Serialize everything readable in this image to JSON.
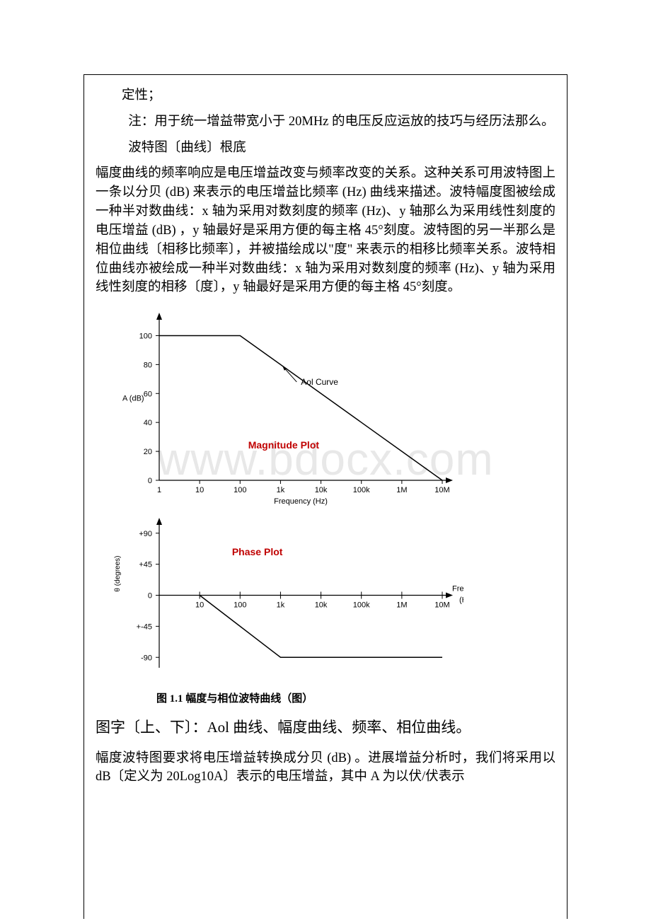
{
  "watermark": "www.bdocx.com",
  "text": {
    "line1": "定性；",
    "line2": "注：用于统一增益带宽小于 20MHz 的电压反应运放的技巧与经历法那么。",
    "line3": "波特图〔曲线〕根底",
    "para1": "幅度曲线的频率响应是电压增益改变与频率改变的关系。这种关系可用波特图上一条以分贝 (dB) 来表示的电压增益比频率 (Hz) 曲线来描述。波特幅度图被绘成一种半对数曲线：x 轴为采用对数刻度的频率 (Hz)、y 轴那么为采用线性刻度的电压增益 (dB) ，y 轴最好是采用方便的每主格 45°刻度。波特图的另一半那么是相位曲线〔相移比频率〕，并被描绘成以\"度\" 来表示的相移比频率关系。波特相位曲线亦被绘成一种半对数曲线：x 轴为采用对数刻度的频率 (Hz)、y 轴为采用线性刻度的相移〔度〕，y 轴最好是采用方便的每主格 45°刻度。",
    "legend_list": "图字〔上、下〕：Aol 曲线、幅度曲线、频率、相位曲线。",
    "para2": "幅度波特图要求将电压增益转换成分贝 (dB) 。进展增益分析时，我们将采用以 dB〔定义为 20Log10A〕表示的电压增益，其中 A 为以伏/伏表示"
  },
  "figure": {
    "caption": "图 1.1   幅度与相位波特曲线（图）",
    "magnitude": {
      "title": "Magnitude Plot",
      "title_color": "#c00000",
      "title_fontsize": 14,
      "title_bold": true,
      "aol_label": "Aol Curve",
      "aol_label_color": "#000000",
      "aol_label_fontsize": 12,
      "y_label": "A (dB)",
      "y_label_fontsize": 11,
      "x_label": "Frequency (Hz)",
      "x_label_fontsize": 11,
      "x_ticks": [
        "1",
        "10",
        "100",
        "1k",
        "10k",
        "100k",
        "1M",
        "10M"
      ],
      "x_decades": [
        0,
        1,
        2,
        3,
        4,
        5,
        6,
        7
      ],
      "y_ticks": [
        0,
        20,
        40,
        60,
        80,
        100
      ],
      "ylim": [
        0,
        110
      ],
      "line_points": [
        [
          0,
          100
        ],
        [
          2,
          100
        ],
        [
          7,
          0
        ]
      ],
      "line_color": "#000000",
      "line_width": 1.5,
      "axis_color": "#000000",
      "arrow_start": [
        3.4,
        68
      ],
      "arrow_end": [
        3.05,
        79
      ]
    },
    "phase": {
      "title": "Phase Plot",
      "title_color": "#c00000",
      "title_fontsize": 14,
      "title_bold": true,
      "y_label": "θ (degrees)",
      "y_label_fontsize": 10,
      "x_label": "Frequency",
      "x_label2": "(Hz)",
      "x_label_fontsize": 11,
      "x_ticks": [
        "10",
        "100",
        "1k",
        "10k",
        "100k",
        "1M",
        "10M"
      ],
      "x_decades": [
        1,
        2,
        3,
        4,
        5,
        6,
        7
      ],
      "y_ticks": [
        "+90",
        "+45",
        "0",
        "+-45",
        "-90"
      ],
      "y_values": [
        90,
        45,
        0,
        -45,
        -90
      ],
      "ylim": [
        -100,
        100
      ],
      "line_points": [
        [
          1,
          0
        ],
        [
          2,
          -45
        ],
        [
          3,
          -90
        ],
        [
          7,
          -90
        ]
      ],
      "line_color": "#000000",
      "line_width": 1.5,
      "axis_color": "#000000"
    }
  }
}
